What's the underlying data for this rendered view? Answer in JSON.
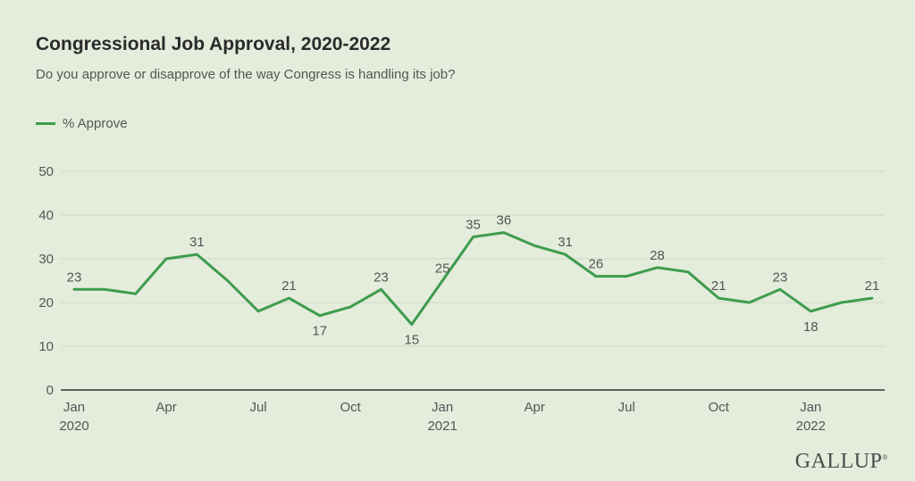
{
  "title": "Congressional Job Approval, 2020-2022",
  "subtitle": "Do you approve or disapprove of the way Congress is handling its job?",
  "legend_label": "% Approve",
  "brand": "GALLUP",
  "colors": {
    "line": "#3e9c4e",
    "background": "#e4ecdc",
    "grid": "#cfd8c6",
    "axis": "#333333",
    "label": "#555555"
  },
  "chart_data": {
    "type": "line",
    "title": "Congressional Job Approval, 2020-2022",
    "subtitle": "Do you approve or disapprove of the way Congress is handling its job?",
    "xlabel": "",
    "ylabel": "",
    "ylim": [
      0,
      50
    ],
    "yticks": [
      0,
      10,
      20,
      30,
      40,
      50
    ],
    "grid": true,
    "legend": "top-left",
    "xtick_labels": [
      {
        "month": "Jan",
        "year": "2020",
        "x": "2020-01"
      },
      {
        "month": "Apr",
        "year": "",
        "x": "2020-04"
      },
      {
        "month": "Jul",
        "year": "",
        "x": "2020-07"
      },
      {
        "month": "Oct",
        "year": "",
        "x": "2020-10"
      },
      {
        "month": "Jan",
        "year": "2021",
        "x": "2021-01"
      },
      {
        "month": "Apr",
        "year": "",
        "x": "2021-04"
      },
      {
        "month": "Jul",
        "year": "",
        "x": "2021-07"
      },
      {
        "month": "Oct",
        "year": "",
        "x": "2021-10"
      },
      {
        "month": "Jan",
        "year": "2022",
        "x": "2022-01"
      }
    ],
    "series": [
      {
        "name": "% Approve",
        "points": [
          {
            "x": "2020-01",
            "y": 23,
            "label": "23"
          },
          {
            "x": "2020-02",
            "y": 23
          },
          {
            "x": "2020-03",
            "y": 22
          },
          {
            "x": "2020-04",
            "y": 30
          },
          {
            "x": "2020-05",
            "y": 31,
            "label": "31"
          },
          {
            "x": "2020-06",
            "y": 25
          },
          {
            "x": "2020-07",
            "y": 18
          },
          {
            "x": "2020-08",
            "y": 21,
            "label": "21"
          },
          {
            "x": "2020-09",
            "y": 17,
            "label": "17"
          },
          {
            "x": "2020-10",
            "y": 19
          },
          {
            "x": "2020-11",
            "y": 23,
            "label": "23"
          },
          {
            "x": "2020-12",
            "y": 15,
            "label": "15"
          },
          {
            "x": "2021-01",
            "y": 25,
            "label": "25"
          },
          {
            "x": "2021-02",
            "y": 35,
            "label": "35"
          },
          {
            "x": "2021-03",
            "y": 36,
            "label": "36"
          },
          {
            "x": "2021-04",
            "y": 33
          },
          {
            "x": "2021-05",
            "y": 31,
            "label": "31"
          },
          {
            "x": "2021-06",
            "y": 26,
            "label": "26"
          },
          {
            "x": "2021-07",
            "y": 26
          },
          {
            "x": "2021-08",
            "y": 28,
            "label": "28"
          },
          {
            "x": "2021-09",
            "y": 27
          },
          {
            "x": "2021-10",
            "y": 21,
            "label": "21"
          },
          {
            "x": "2021-11",
            "y": 20
          },
          {
            "x": "2021-12",
            "y": 23,
            "label": "23"
          },
          {
            "x": "2022-01",
            "y": 18,
            "label": "18"
          },
          {
            "x": "2022-02",
            "y": 20
          },
          {
            "x": "2022-03",
            "y": 21,
            "label": "21"
          }
        ]
      }
    ]
  }
}
